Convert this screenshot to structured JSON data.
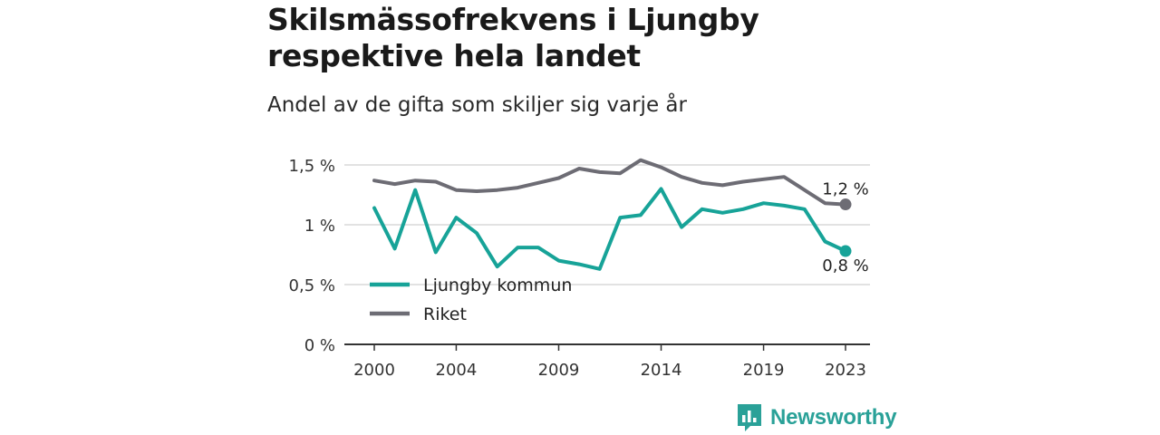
{
  "title": "Skilsmässofrekvens i Ljungby respektive hela landet",
  "subtitle": "Andel av de gifta som skiljer sig varje år",
  "brand": "Newsworthy",
  "colors": {
    "ljungby": "#17a398",
    "riket": "#6d6c74",
    "grid": "#d9d9d9",
    "axis": "#333333",
    "brand": "#2aa198"
  },
  "chart_data": {
    "type": "line",
    "title": "Skilsmässofrekvens i Ljungby respektive hela landet",
    "subtitle": "Andel av de gifta som skiljer sig varje år",
    "x": [
      2000,
      2001,
      2002,
      2003,
      2004,
      2005,
      2006,
      2007,
      2008,
      2009,
      2010,
      2011,
      2012,
      2013,
      2014,
      2015,
      2016,
      2017,
      2018,
      2019,
      2020,
      2021,
      2022,
      2023
    ],
    "xticks": [
      2000,
      2004,
      2009,
      2014,
      2019,
      2023
    ],
    "yticks": [
      {
        "value": 0,
        "label": "0 %"
      },
      {
        "value": 0.5,
        "label": "0,5 %"
      },
      {
        "value": 1,
        "label": "1 %"
      },
      {
        "value": 1.5,
        "label": "1,5 %"
      }
    ],
    "ylim": [
      0,
      1.5
    ],
    "grid": true,
    "legend_position": "lower-left",
    "series": [
      {
        "name": "Ljungby kommun",
        "color": "#17a398",
        "values": [
          1.14,
          0.8,
          1.29,
          0.77,
          1.06,
          0.93,
          0.65,
          0.81,
          0.81,
          0.7,
          0.67,
          0.63,
          1.06,
          1.08,
          1.3,
          0.98,
          1.13,
          1.1,
          1.13,
          1.18,
          1.16,
          1.13,
          0.86,
          0.78
        ],
        "end_label": "0,8 %"
      },
      {
        "name": "Riket",
        "color": "#6d6c74",
        "values": [
          1.37,
          1.34,
          1.37,
          1.36,
          1.29,
          1.28,
          1.29,
          1.31,
          1.35,
          1.39,
          1.47,
          1.44,
          1.43,
          1.54,
          1.48,
          1.4,
          1.35,
          1.33,
          1.36,
          1.38,
          1.4,
          1.29,
          1.18,
          1.17
        ],
        "end_label": "1,2 %"
      }
    ]
  }
}
